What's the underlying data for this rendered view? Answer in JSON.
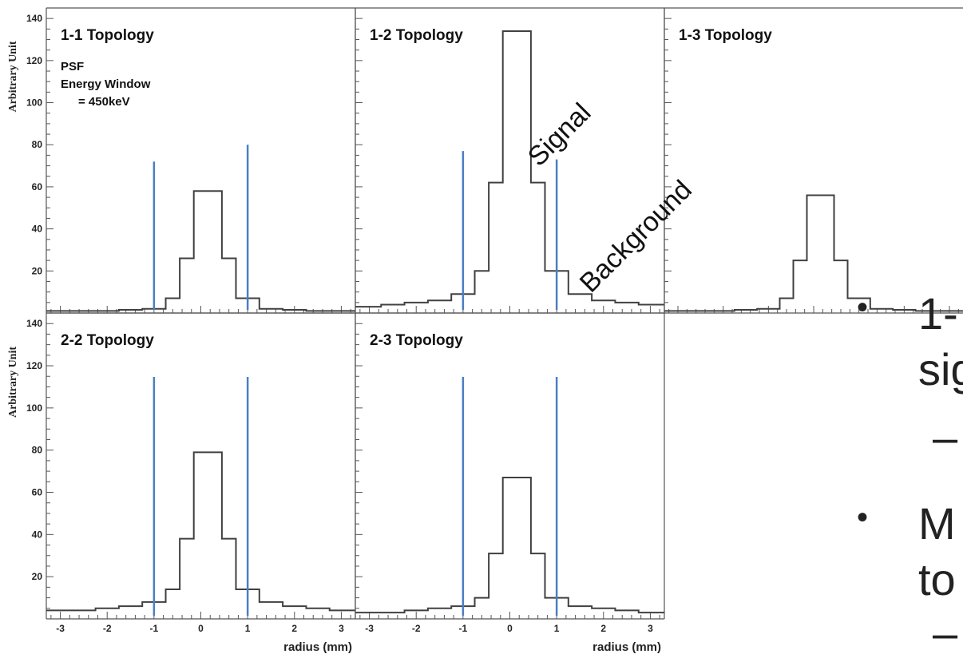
{
  "chart_data": {
    "type": "bar",
    "ylabel": "Arbitrary Unit",
    "xlabel": "radius (mm)",
    "xlim": [
      -3.3,
      3.3
    ],
    "ylim": [
      0,
      145
    ],
    "xticks": [
      "-3",
      "-2",
      "-1",
      "0",
      "1",
      "2",
      "3"
    ],
    "yticks": [
      "20",
      "40",
      "60",
      "80",
      "100",
      "120",
      "140"
    ],
    "bin_edges": [
      -3.3,
      -2.75,
      -2.25,
      -1.75,
      -1.25,
      -0.75,
      -0.45,
      -0.15,
      0.15,
      0.45,
      0.75,
      1.25,
      1.75,
      2.25,
      2.75,
      3.3
    ],
    "cut_lines": [
      -1,
      1
    ],
    "panels": [
      {
        "title": "1-1 Topology",
        "values": [
          1,
          1,
          1,
          1.5,
          2,
          7,
          26,
          58,
          58,
          26,
          7,
          2,
          1.5,
          1,
          1
        ],
        "cut_heights": [
          72,
          80
        ],
        "annotation": [
          "PSF",
          "Energy Window",
          "= 450keV"
        ]
      },
      {
        "title": "1-2 Topology",
        "values": [
          3,
          4,
          5,
          6,
          9,
          20,
          62,
          134,
          134,
          62,
          20,
          9,
          6,
          5,
          4
        ],
        "cut_heights": [
          77,
          73
        ]
      },
      {
        "title": "1-3 Topology",
        "values": [
          1,
          1,
          1,
          1.5,
          2,
          7,
          25,
          56,
          56,
          25,
          7,
          2,
          1.5,
          1,
          1
        ],
        "cut_heights": null
      },
      {
        "title": "2-2 Topology",
        "values": [
          4,
          4,
          5,
          6,
          8,
          14,
          38,
          79,
          79,
          38,
          14,
          8,
          6,
          5,
          4
        ],
        "cut_heights": [
          null,
          null
        ]
      },
      {
        "title": "2-3 Topology",
        "values": [
          3,
          3,
          4,
          5,
          6,
          10,
          31,
          67,
          67,
          31,
          10,
          6,
          5,
          4,
          3
        ],
        "cut_heights": [
          null,
          null
        ]
      }
    ]
  },
  "labels": {
    "signal": "Signal",
    "background": "Background"
  },
  "slide_fragments": {
    "line1": "1-",
    "line2": "sig",
    "line3": "–",
    "line4": "M",
    "line5": "to",
    "line6": "–"
  },
  "colors": {
    "histogram": "#404040",
    "cut_line": "#4a7fc1",
    "axis": "#000000"
  }
}
